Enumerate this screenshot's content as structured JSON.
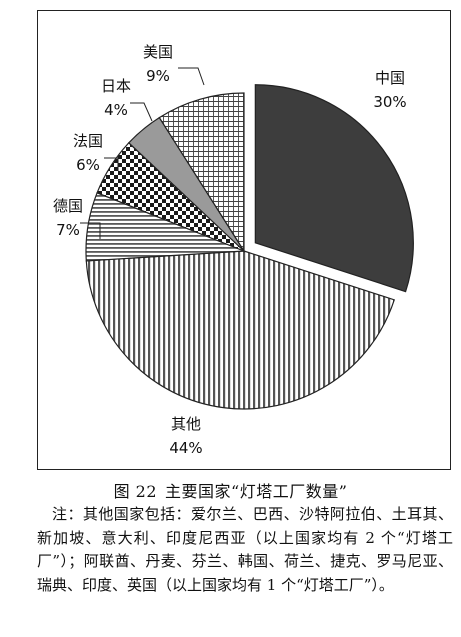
{
  "chart_data": {
    "type": "pie",
    "slices": [
      {
        "label": "中国",
        "pct_label": "30%",
        "value": 30,
        "fill": "dark",
        "exploded": true
      },
      {
        "label": "其他",
        "pct_label": "44%",
        "value": 44,
        "fill": "vertical-stripes"
      },
      {
        "label": "德国",
        "pct_label": "7%",
        "value": 7,
        "fill": "horizontal-stripes"
      },
      {
        "label": "法国",
        "pct_label": "6%",
        "value": 6,
        "fill": "checkerboard"
      },
      {
        "label": "日本",
        "pct_label": "4%",
        "value": 4,
        "fill": "gray"
      },
      {
        "label": "美国",
        "pct_label": "9%",
        "value": 9,
        "fill": "grid"
      }
    ],
    "colors": {
      "dark": "#3d3d3d",
      "gray": "#9a9a9a",
      "line": "#222222"
    }
  },
  "caption": {
    "number": "图 22",
    "title": "主要国家“灯塔工厂数量”"
  },
  "note": "注：其他国家包括：爱尔兰、巴西、沙特阿拉伯、土耳其、新加坡、意大利、印度尼西亚（以上国家均有 2 个“灯塔工厂”）；阿联酋、丹麦、芬兰、韩国、荷兰、捷克、罗马尼亚、瑞典、印度、英国（以上国家均有 1 个“灯塔工厂”）。"
}
